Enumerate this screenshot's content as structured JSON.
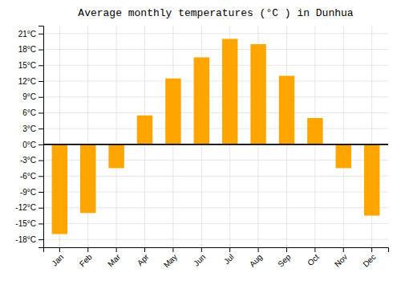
{
  "chart_data": {
    "type": "bar",
    "title": "Average monthly temperatures (°C ) in Dunhua",
    "categories": [
      "Jan",
      "Feb",
      "Mar",
      "Apr",
      "May",
      "Jun",
      "Jul",
      "Aug",
      "Sep",
      "Oct",
      "Nov",
      "Dec"
    ],
    "values": [
      -17,
      -13,
      -4.5,
      5.5,
      12.5,
      16.5,
      20,
      19,
      13,
      5,
      -4.5,
      -13.5
    ],
    "color": "#FFA500",
    "ylim": [
      -19.5,
      22.5
    ],
    "yticks": [
      {
        "value": -18,
        "label": "-18°C"
      },
      {
        "value": -15,
        "label": "-15°C"
      },
      {
        "value": -12,
        "label": "-12°C"
      },
      {
        "value": -9,
        "label": "-9°C"
      },
      {
        "value": -6,
        "label": "-6°C"
      },
      {
        "value": -3,
        "label": "-3°C"
      },
      {
        "value": 0,
        "label": "0°C"
      },
      {
        "value": 3,
        "label": "3°C"
      },
      {
        "value": 6,
        "label": "6°C"
      },
      {
        "value": 9,
        "label": "9°C"
      },
      {
        "value": 12,
        "label": "12°C"
      },
      {
        "value": 15,
        "label": "15°C"
      },
      {
        "value": 18,
        "label": "18°C"
      },
      {
        "value": 21,
        "label": "21°C"
      }
    ],
    "grid": true
  }
}
